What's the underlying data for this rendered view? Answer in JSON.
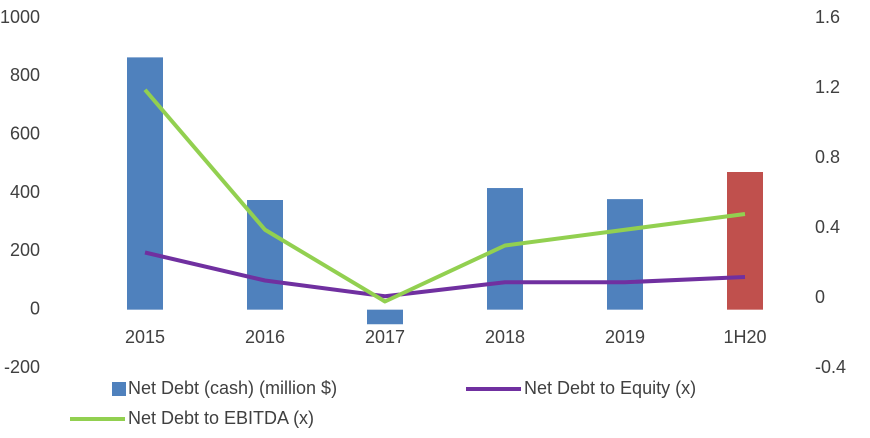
{
  "chart_data": {
    "type": "bar-line",
    "categories": [
      "2015",
      "2016",
      "2017",
      "2018",
      "2019",
      "1H20"
    ],
    "series": [
      {
        "name": "Net Debt (cash) (million $)",
        "type": "bar",
        "color": "#4f81bd",
        "colors": [
          "#4f81bd",
          "#4f81bd",
          "#4f81bd",
          "#4f81bd",
          "#4f81bd",
          "#c0504d"
        ],
        "values": [
          865,
          376,
          -50,
          417,
          379,
          472
        ]
      },
      {
        "name": "Net Debt to Equity (x)",
        "type": "line",
        "axis": "y2",
        "color": "#7030a0",
        "values": [
          0.26,
          0.1,
          0.01,
          0.09,
          0.09,
          0.12
        ]
      },
      {
        "name": "Net Debt to EBITDA (x)",
        "type": "line",
        "axis": "y2",
        "color": "#92d050",
        "values": [
          1.19,
          0.39,
          -0.02,
          0.3,
          0.39,
          0.48
        ]
      }
    ],
    "ylim": [
      -200,
      1000
    ],
    "yticks": [
      -200,
      0,
      200,
      400,
      600,
      800,
      1000
    ],
    "y2lim": [
      -0.4,
      1.6
    ],
    "y2ticks": [
      -0.4,
      0,
      0.4,
      0.8,
      1.2,
      1.6
    ],
    "grid": false
  }
}
